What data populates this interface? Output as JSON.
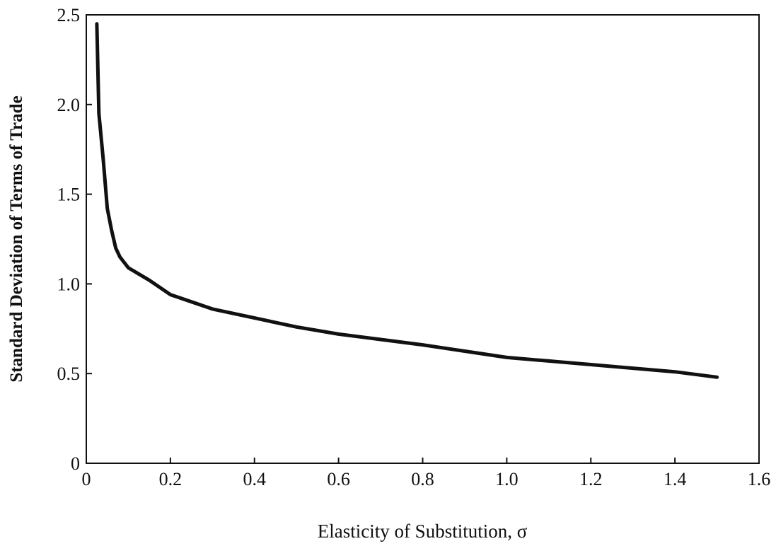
{
  "chart_data": {
    "type": "line",
    "title": "",
    "xlabel": "Elasticity of Substitution, σ",
    "ylabel": "Standard Deviation of Terms of Trade",
    "xlim": [
      0,
      1.6
    ],
    "ylim": [
      0,
      2.5
    ],
    "xticks": [
      0,
      0.2,
      0.4,
      0.6,
      0.8,
      1.0,
      1.2,
      1.4,
      1.6
    ],
    "xtick_labels": [
      "0",
      "0.2",
      "0.4",
      "0.6",
      "0.8",
      "1.0",
      "1.2",
      "1.4",
      "1.6"
    ],
    "yticks": [
      0,
      0.5,
      1.0,
      1.5,
      2.0,
      2.5
    ],
    "ytick_labels": [
      "0",
      "0.5",
      "1.0",
      "1.5",
      "2.0",
      "2.5"
    ],
    "grid": false,
    "series": [
      {
        "x": [
          0.025,
          0.03,
          0.04,
          0.05,
          0.06,
          0.07,
          0.08,
          0.1,
          0.15,
          0.2,
          0.3,
          0.4,
          0.5,
          0.6,
          0.7,
          0.8,
          0.9,
          1.0,
          1.1,
          1.2,
          1.3,
          1.4,
          1.5
        ],
        "y": [
          2.45,
          1.95,
          1.7,
          1.42,
          1.3,
          1.2,
          1.15,
          1.09,
          1.02,
          0.94,
          0.86,
          0.81,
          0.76,
          0.72,
          0.69,
          0.66,
          0.625,
          0.59,
          0.57,
          0.55,
          0.53,
          0.51,
          0.48
        ]
      }
    ]
  }
}
